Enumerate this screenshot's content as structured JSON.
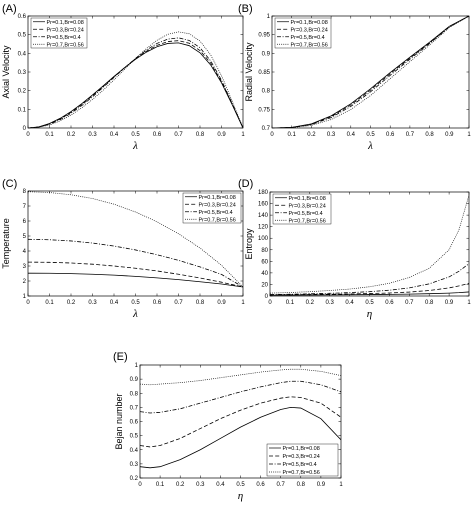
{
  "legend_entries": [
    "Pr=0.1,Br=0.08",
    "Pr=0.3,Br=0.24",
    "Pr=0.5,Br=0.4",
    "Pr=0.7,Br=0.56"
  ],
  "chart_data": [
    {
      "panel": "(A)",
      "type": "line",
      "xlabel": "λ",
      "ylabel": "Axial Velocity",
      "xlim": [
        0,
        1
      ],
      "ylim": [
        0,
        0.6
      ],
      "xticks": [
        "0",
        "0.1",
        "0.2",
        "0.3",
        "0.4",
        "0.5",
        "0.6",
        "0.7",
        "0.8",
        "0.9",
        "1"
      ],
      "yticks": [
        "0",
        "0.1",
        "0.2",
        "0.3",
        "0.4",
        "0.5",
        "0.6"
      ],
      "legend_position": "top-left",
      "series": [
        {
          "name": "Pr=0.1,Br=0.08",
          "style": "solid",
          "x": [
            0,
            0.05,
            0.1,
            0.15,
            0.2,
            0.25,
            0.3,
            0.35,
            0.4,
            0.45,
            0.5,
            0.55,
            0.6,
            0.65,
            0.7,
            0.75,
            0.8,
            0.85,
            0.9,
            0.95,
            1
          ],
          "y": [
            0,
            0.006,
            0.024,
            0.052,
            0.088,
            0.13,
            0.177,
            0.226,
            0.276,
            0.324,
            0.368,
            0.406,
            0.435,
            0.453,
            0.456,
            0.441,
            0.403,
            0.337,
            0.242,
            0.124,
            0
          ]
        },
        {
          "name": "Pr=0.3,Br=0.24",
          "style": "dashed",
          "x": [
            0,
            0.05,
            0.1,
            0.15,
            0.2,
            0.25,
            0.3,
            0.35,
            0.4,
            0.45,
            0.5,
            0.55,
            0.6,
            0.65,
            0.7,
            0.75,
            0.8,
            0.85,
            0.9,
            0.95,
            1
          ],
          "y": [
            0,
            0.005,
            0.022,
            0.049,
            0.084,
            0.126,
            0.173,
            0.223,
            0.274,
            0.324,
            0.371,
            0.411,
            0.443,
            0.463,
            0.468,
            0.454,
            0.415,
            0.347,
            0.248,
            0.127,
            0
          ]
        },
        {
          "name": "Pr=0.5,Br=0.4",
          "style": "dashdot",
          "x": [
            0,
            0.05,
            0.1,
            0.15,
            0.2,
            0.25,
            0.3,
            0.35,
            0.4,
            0.45,
            0.5,
            0.55,
            0.6,
            0.65,
            0.7,
            0.75,
            0.8,
            0.85,
            0.9,
            0.95,
            1
          ],
          "y": [
            0,
            0.005,
            0.02,
            0.045,
            0.079,
            0.12,
            0.167,
            0.218,
            0.271,
            0.323,
            0.373,
            0.417,
            0.453,
            0.476,
            0.483,
            0.469,
            0.43,
            0.359,
            0.256,
            0.131,
            0
          ]
        },
        {
          "name": "Pr=0.7,Br=0.56",
          "style": "dotted",
          "x": [
            0,
            0.05,
            0.1,
            0.15,
            0.2,
            0.25,
            0.3,
            0.35,
            0.4,
            0.45,
            0.5,
            0.55,
            0.6,
            0.65,
            0.7,
            0.75,
            0.8,
            0.85,
            0.9,
            0.95,
            1
          ],
          "y": [
            0,
            0.004,
            0.016,
            0.038,
            0.069,
            0.108,
            0.153,
            0.203,
            0.258,
            0.315,
            0.372,
            0.425,
            0.47,
            0.502,
            0.515,
            0.505,
            0.466,
            0.391,
            0.281,
            0.144,
            0
          ]
        }
      ]
    },
    {
      "panel": "(B)",
      "type": "line",
      "xlabel": "λ",
      "ylabel": "Radial Velocity",
      "xlim": [
        0,
        1
      ],
      "ylim": [
        0.7,
        1
      ],
      "xticks": [
        "0",
        "0.1",
        "0.2",
        "0.3",
        "0.4",
        "0.5",
        "0.6",
        "0.7",
        "0.8",
        "0.9",
        "1"
      ],
      "yticks": [
        "0.7",
        "0.75",
        "0.8",
        "0.85",
        "0.9",
        "0.95",
        "1"
      ],
      "legend_position": "top-left",
      "series": [
        {
          "name": "Pr=0.1,Br=0.08",
          "style": "solid",
          "x": [
            0,
            0.1,
            0.2,
            0.3,
            0.4,
            0.5,
            0.6,
            0.7,
            0.8,
            0.9,
            1
          ],
          "y": [
            0.7,
            0.7015,
            0.7111,
            0.7325,
            0.7648,
            0.805,
            0.8486,
            0.8898,
            0.9299,
            0.9724,
            1.0
          ]
        },
        {
          "name": "Pr=0.3,Br=0.24",
          "style": "dashed",
          "x": [
            0,
            0.1,
            0.2,
            0.3,
            0.4,
            0.5,
            0.6,
            0.7,
            0.8,
            0.9,
            1
          ],
          "y": [
            0.7,
            0.7013,
            0.7102,
            0.7304,
            0.7617,
            0.8014,
            0.8454,
            0.8873,
            0.9283,
            0.9717,
            1.0
          ]
        },
        {
          "name": "Pr=0.5,Br=0.4",
          "style": "dashdot",
          "x": [
            0,
            0.1,
            0.2,
            0.3,
            0.4,
            0.5,
            0.6,
            0.7,
            0.8,
            0.9,
            1
          ],
          "y": [
            0.7,
            0.7011,
            0.7091,
            0.7279,
            0.7578,
            0.7968,
            0.8412,
            0.8843,
            0.9263,
            0.9708,
            1.0
          ]
        },
        {
          "name": "Pr=0.7,Br=0.56",
          "style": "dotted",
          "x": [
            0,
            0.1,
            0.2,
            0.3,
            0.4,
            0.5,
            0.6,
            0.7,
            0.8,
            0.9,
            1
          ],
          "y": [
            0.7,
            0.7008,
            0.7069,
            0.7228,
            0.7495,
            0.7869,
            0.8322,
            0.8777,
            0.9223,
            0.9688,
            1.0
          ]
        }
      ]
    },
    {
      "panel": "(C)",
      "type": "line",
      "xlabel": "λ",
      "ylabel": "Temperature",
      "xlim": [
        0,
        1
      ],
      "ylim": [
        1,
        8
      ],
      "xticks": [
        "0",
        "0.1",
        "0.2",
        "0.3",
        "0.4",
        "0.5",
        "0.6",
        "0.7",
        "0.8",
        "0.9",
        "1"
      ],
      "yticks": [
        "1",
        "2",
        "3",
        "4",
        "5",
        "6",
        "7",
        "8"
      ],
      "legend_position": "top-right",
      "series": [
        {
          "name": "Pr=0.1,Br=0.08",
          "style": "solid",
          "x": [
            0,
            0.1,
            0.2,
            0.3,
            0.4,
            0.5,
            0.6,
            0.7,
            0.8,
            0.9,
            1
          ],
          "y": [
            2.52,
            2.515,
            2.49,
            2.45,
            2.39,
            2.31,
            2.21,
            2.09,
            1.95,
            1.8,
            1.6
          ]
        },
        {
          "name": "Pr=0.3,Br=0.24",
          "style": "dashed",
          "x": [
            0,
            0.1,
            0.2,
            0.3,
            0.4,
            0.5,
            0.6,
            0.7,
            0.8,
            0.9,
            1
          ],
          "y": [
            3.26,
            3.245,
            3.2,
            3.12,
            3.0,
            2.85,
            2.67,
            2.45,
            2.2,
            1.92,
            1.6
          ]
        },
        {
          "name": "Pr=0.5,Br=0.4",
          "style": "dashdot",
          "x": [
            0,
            0.1,
            0.2,
            0.3,
            0.4,
            0.5,
            0.6,
            0.7,
            0.8,
            0.9,
            1
          ],
          "y": [
            4.78,
            4.75,
            4.67,
            4.53,
            4.33,
            4.07,
            3.75,
            3.38,
            2.94,
            2.44,
            1.6
          ]
        },
        {
          "name": "Pr=0.7,Br=0.56",
          "style": "dotted",
          "x": [
            0,
            0.1,
            0.2,
            0.3,
            0.4,
            0.5,
            0.6,
            0.7,
            0.8,
            0.9,
            1
          ],
          "y": [
            7.95,
            7.9,
            7.75,
            7.5,
            7.12,
            6.6,
            5.95,
            5.15,
            4.2,
            3.05,
            1.6
          ]
        }
      ]
    },
    {
      "panel": "(D)",
      "type": "line",
      "xlabel": "η",
      "ylabel": "Entropy",
      "xlim": [
        0,
        1
      ],
      "ylim": [
        0,
        180
      ],
      "xticks": [
        "0",
        "0.1",
        "0.2",
        "0.3",
        "0.4",
        "0.5",
        "0.6",
        "0.7",
        "0.8",
        "0.9",
        "1"
      ],
      "yticks": [
        "0",
        "20",
        "40",
        "60",
        "80",
        "100",
        "120",
        "140",
        "160",
        "180"
      ],
      "legend_position": "top-left",
      "series": [
        {
          "name": "Pr=0.1,Br=0.08",
          "style": "solid",
          "x": [
            0,
            0.1,
            0.2,
            0.3,
            0.4,
            0.5,
            0.6,
            0.7,
            0.8,
            0.9,
            0.95,
            1
          ],
          "y": [
            1.5,
            1.6,
            1.8,
            2.0,
            2.2,
            2.5,
            2.8,
            3.3,
            4.0,
            5.0,
            5.8,
            7.0
          ]
        },
        {
          "name": "Pr=0.3,Br=0.24",
          "style": "dashed",
          "x": [
            0,
            0.1,
            0.2,
            0.3,
            0.4,
            0.5,
            0.6,
            0.7,
            0.8,
            0.9,
            0.95,
            1
          ],
          "y": [
            2.0,
            2.2,
            2.6,
            3.0,
            3.5,
            4.2,
            5.2,
            6.8,
            9.5,
            14.0,
            17.5,
            22.0
          ]
        },
        {
          "name": "Pr=0.5,Br=0.4",
          "style": "dashdot",
          "x": [
            0,
            0.1,
            0.2,
            0.3,
            0.4,
            0.5,
            0.6,
            0.7,
            0.8,
            0.9,
            0.95,
            1
          ],
          "y": [
            2.5,
            3.0,
            3.8,
            4.7,
            5.8,
            7.5,
            10.0,
            14.0,
            21.0,
            33.0,
            43.0,
            56.0
          ]
        },
        {
          "name": "Pr=0.7,Br=0.56",
          "style": "dotted",
          "x": [
            0,
            0.1,
            0.2,
            0.3,
            0.4,
            0.5,
            0.6,
            0.7,
            0.8,
            0.9,
            0.95,
            1
          ],
          "y": [
            5.0,
            6.0,
            7.5,
            9.5,
            12.0,
            16.0,
            22.0,
            32.0,
            48.0,
            80.0,
            115.0,
            175.0
          ]
        }
      ]
    },
    {
      "panel": "(E)",
      "type": "line",
      "xlabel": "η",
      "ylabel": "Bejan number",
      "xlim": [
        0,
        1
      ],
      "ylim": [
        0.2,
        1
      ],
      "xticks": [
        "0",
        "0.1",
        "0.2",
        "0.3",
        "0.4",
        "0.5",
        "0.6",
        "0.7",
        "0.8",
        "0.9",
        "1"
      ],
      "yticks": [
        "0.2",
        "0.3",
        "0.4",
        "0.5",
        "0.6",
        "0.7",
        "0.8",
        "0.9",
        "1"
      ],
      "legend_position": "bottom-right",
      "series": [
        {
          "name": "Pr=0.1,Br=0.08",
          "style": "solid",
          "x": [
            0,
            0.05,
            0.1,
            0.2,
            0.3,
            0.4,
            0.5,
            0.6,
            0.7,
            0.75,
            0.8,
            0.9,
            1
          ],
          "y": [
            0.28,
            0.272,
            0.28,
            0.33,
            0.4,
            0.48,
            0.56,
            0.63,
            0.685,
            0.7,
            0.695,
            0.62,
            0.47
          ]
        },
        {
          "name": "Pr=0.3,Br=0.24",
          "style": "dashed",
          "x": [
            0,
            0.05,
            0.1,
            0.2,
            0.3,
            0.4,
            0.5,
            0.6,
            0.7,
            0.75,
            0.8,
            0.9,
            1
          ],
          "y": [
            0.43,
            0.42,
            0.43,
            0.48,
            0.55,
            0.62,
            0.68,
            0.73,
            0.765,
            0.775,
            0.77,
            0.73,
            0.63
          ]
        },
        {
          "name": "Pr=0.5,Br=0.4",
          "style": "dashdot",
          "x": [
            0,
            0.05,
            0.1,
            0.2,
            0.3,
            0.4,
            0.5,
            0.6,
            0.7,
            0.75,
            0.8,
            0.9,
            1
          ],
          "y": [
            0.67,
            0.66,
            0.665,
            0.69,
            0.73,
            0.77,
            0.81,
            0.845,
            0.875,
            0.885,
            0.885,
            0.86,
            0.81
          ]
        },
        {
          "name": "Pr=0.7,Br=0.56",
          "style": "dotted",
          "x": [
            0,
            0.05,
            0.1,
            0.2,
            0.3,
            0.4,
            0.5,
            0.6,
            0.7,
            0.75,
            0.8,
            0.9,
            1
          ],
          "y": [
            0.865,
            0.86,
            0.865,
            0.875,
            0.89,
            0.91,
            0.93,
            0.95,
            0.965,
            0.97,
            0.97,
            0.955,
            0.925
          ]
        }
      ]
    }
  ]
}
